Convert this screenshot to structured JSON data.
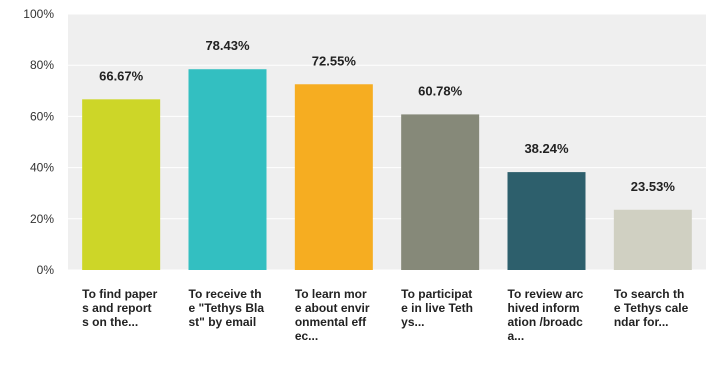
{
  "chart_data": {
    "type": "bar",
    "categories": [
      "To find papers and reports on the...",
      "To receive the \"Tethys Blast\" by email",
      "To learn more about environmental effec...",
      "To participate in live Tethys...",
      "To review archived information /broadca...",
      "To search the Tethys calendar for..."
    ],
    "values": [
      66.67,
      78.43,
      72.55,
      60.78,
      38.24,
      23.53
    ],
    "value_labels": [
      "66.67%",
      "78.43%",
      "72.55%",
      "60.78%",
      "38.24%",
      "23.53%"
    ],
    "yticks": [
      "0%",
      "20%",
      "40%",
      "60%",
      "80%",
      "100%"
    ],
    "ylim": [
      0,
      100
    ],
    "grid": true,
    "colors": [
      "#cdd628",
      "#33bfc1",
      "#f6ad21",
      "#868979",
      "#2d5f6c",
      "#d0d0c2"
    ],
    "grid_color": "#ffffff",
    "plot_background": "#efefef"
  }
}
